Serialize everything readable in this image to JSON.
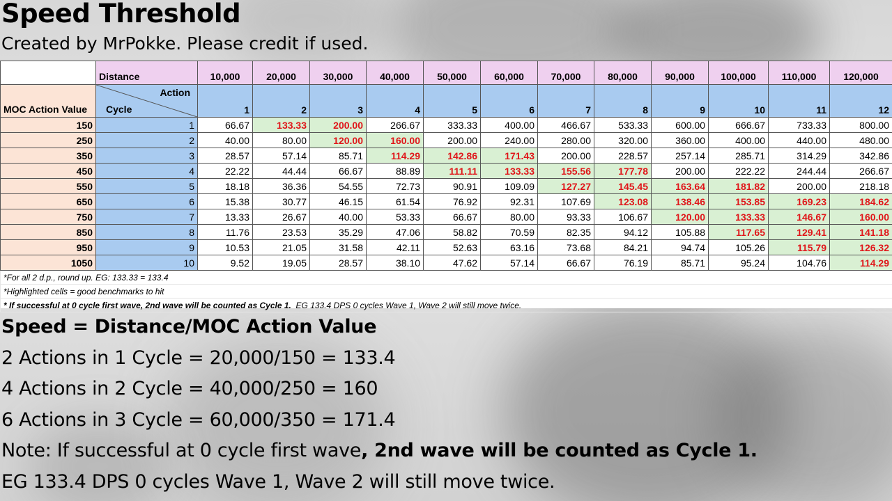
{
  "title": "Speed Threshold",
  "subtitle": "Created by MrPokke. Please credit if used.",
  "table": {
    "distance_label": "Distance",
    "distances": [
      "10,000",
      "20,000",
      "30,000",
      "40,000",
      "50,000",
      "60,000",
      "70,000",
      "80,000",
      "90,000",
      "100,000",
      "110,000",
      "120,000"
    ],
    "action_label": "Action",
    "cycle_label": "Cycle",
    "moc_label": "MOC Action Value",
    "actions": [
      "1",
      "2",
      "3",
      "4",
      "5",
      "6",
      "7",
      "8",
      "9",
      "10",
      "11",
      "12"
    ],
    "rows": [
      {
        "moc": "150",
        "cycle": "1",
        "values": [
          "66.67",
          "133.33",
          "200.00",
          "266.67",
          "333.33",
          "400.00",
          "466.67",
          "533.33",
          "600.00",
          "666.67",
          "733.33",
          "800.00"
        ],
        "green": [
          1,
          2
        ],
        "red": [
          1,
          2
        ]
      },
      {
        "moc": "250",
        "cycle": "2",
        "values": [
          "40.00",
          "80.00",
          "120.00",
          "160.00",
          "200.00",
          "240.00",
          "280.00",
          "320.00",
          "360.00",
          "400.00",
          "440.00",
          "480.00"
        ],
        "green": [
          2,
          3
        ],
        "red": [
          2,
          3
        ]
      },
      {
        "moc": "350",
        "cycle": "3",
        "values": [
          "28.57",
          "57.14",
          "85.71",
          "114.29",
          "142.86",
          "171.43",
          "200.00",
          "228.57",
          "257.14",
          "285.71",
          "314.29",
          "342.86"
        ],
        "green": [
          3,
          4,
          5
        ],
        "red": [
          3,
          4,
          5
        ]
      },
      {
        "moc": "450",
        "cycle": "4",
        "values": [
          "22.22",
          "44.44",
          "66.67",
          "88.89",
          "111.11",
          "133.33",
          "155.56",
          "177.78",
          "200.00",
          "222.22",
          "244.44",
          "266.67"
        ],
        "green": [
          4,
          5,
          6,
          7
        ],
        "red": [
          4,
          5,
          6,
          7
        ]
      },
      {
        "moc": "550",
        "cycle": "5",
        "values": [
          "18.18",
          "36.36",
          "54.55",
          "72.73",
          "90.91",
          "109.09",
          "127.27",
          "145.45",
          "163.64",
          "181.82",
          "200.00",
          "218.18"
        ],
        "green": [
          6,
          7,
          8,
          9
        ],
        "red": [
          6,
          7,
          8,
          9
        ]
      },
      {
        "moc": "650",
        "cycle": "6",
        "values": [
          "15.38",
          "30.77",
          "46.15",
          "61.54",
          "76.92",
          "92.31",
          "107.69",
          "123.08",
          "138.46",
          "153.85",
          "169.23",
          "184.62"
        ],
        "green": [
          7,
          8,
          9,
          10,
          11
        ],
        "red": [
          7,
          8,
          9,
          10,
          11
        ]
      },
      {
        "moc": "750",
        "cycle": "7",
        "values": [
          "13.33",
          "26.67",
          "40.00",
          "53.33",
          "66.67",
          "80.00",
          "93.33",
          "106.67",
          "120.00",
          "133.33",
          "146.67",
          "160.00"
        ],
        "green": [
          8,
          9,
          10,
          11
        ],
        "red": [
          8,
          9,
          10,
          11
        ]
      },
      {
        "moc": "850",
        "cycle": "8",
        "values": [
          "11.76",
          "23.53",
          "35.29",
          "47.06",
          "58.82",
          "70.59",
          "82.35",
          "94.12",
          "105.88",
          "117.65",
          "129.41",
          "141.18"
        ],
        "green": [
          9,
          10,
          11
        ],
        "red": [
          9,
          10,
          11
        ]
      },
      {
        "moc": "950",
        "cycle": "9",
        "values": [
          "10.53",
          "21.05",
          "31.58",
          "42.11",
          "52.63",
          "63.16",
          "73.68",
          "84.21",
          "94.74",
          "105.26",
          "115.79",
          "126.32"
        ],
        "green": [
          10,
          11
        ],
        "red": [
          10,
          11
        ]
      },
      {
        "moc": "1050",
        "cycle": "10",
        "values": [
          "9.52",
          "19.05",
          "28.57",
          "38.10",
          "47.62",
          "57.14",
          "66.67",
          "76.19",
          "85.71",
          "95.24",
          "104.76",
          "114.29"
        ],
        "green": [
          11
        ],
        "red": [
          11
        ]
      }
    ],
    "notes": [
      {
        "text": "*For all 2 d.p., round up. EG: 133.33 = 133.4"
      },
      {
        "text": "*Highlighted cells = good benchmarks to hit"
      },
      {
        "bold": "* If successful at 0 cycle first wave, 2nd wave will be counted as Cycle 1.",
        "text": "  EG 133.4 DPS 0 cycles Wave 1, Wave 2 will still move twice."
      }
    ]
  },
  "explanation": {
    "heading": "Speed = Distance/MOC Action Value",
    "line1": "2 Actions in 1 Cycle = 20,000/150 = 133.4",
    "line2": "4 Actions in 2 Cycle = 40,000/250 = 160",
    "line3": "6 Actions in 3 Cycle = 60,000/350 = 171.4",
    "note_prefix": "Note: If successful at 0 cycle first wave",
    "note_bold": ", 2nd wave will be counted as Cycle 1.",
    "eg": "EG 133.4 DPS 0 cycles Wave 1, Wave 2 will still move twice."
  }
}
